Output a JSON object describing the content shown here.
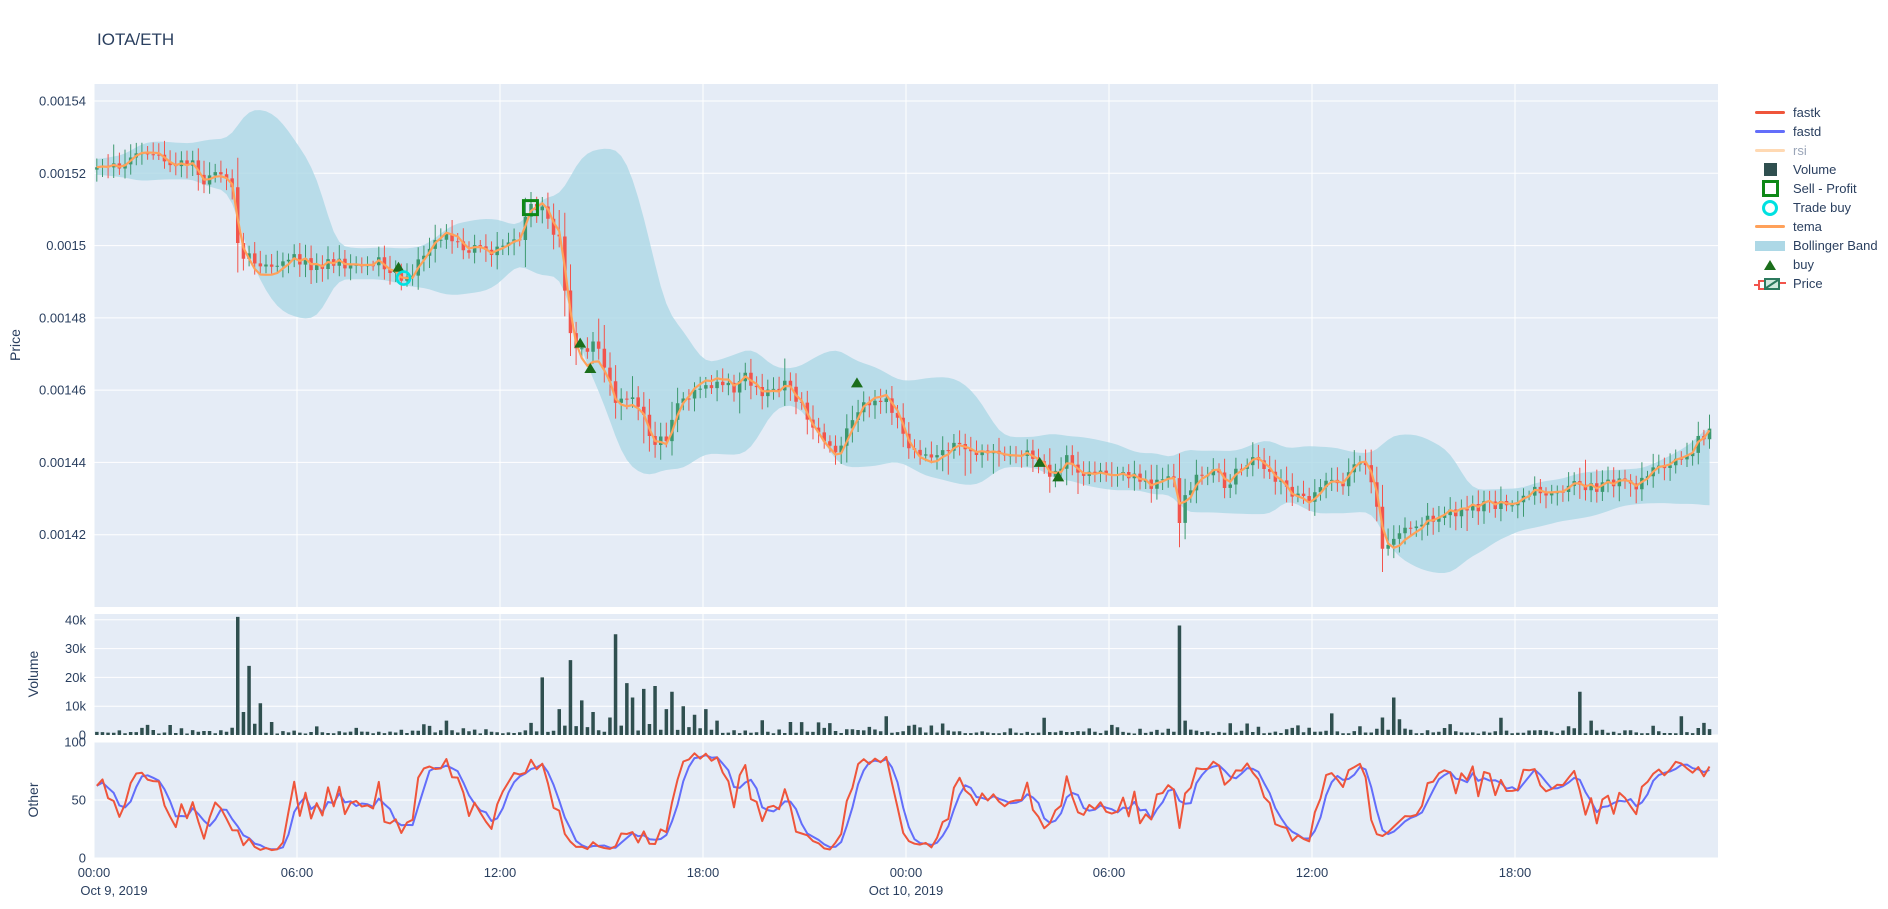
{
  "title": "IOTA/ETH",
  "colors": {
    "background": "#ffffff",
    "plot_bg": "#E5ECF6",
    "grid": "#ffffff",
    "text": "#2a3f5f",
    "muted_text": "#9aa5b8",
    "candle_up": "#3D9970",
    "candle_down": "#F2544C",
    "tema": "#FFA15A",
    "bollinger": "#ADD8E6",
    "volume": "#2F4F4F",
    "fastk": "#EF553B",
    "fastd": "#636EFA",
    "rsi": "#FFD9B3",
    "buy": "#1B6E1B",
    "sell_profit": "#0E8816",
    "trade_buy": "#00E1E1"
  },
  "legend": {
    "items": [
      {
        "label": "fastk",
        "swatch": "line",
        "color": "#EF553B",
        "hidden": false
      },
      {
        "label": "fastd",
        "swatch": "line",
        "color": "#636EFA",
        "hidden": false
      },
      {
        "label": "rsi",
        "swatch": "line",
        "color": "#FFD9B3",
        "hidden": true
      },
      {
        "label": "Volume",
        "swatch": "square",
        "color": "#2F4F4F",
        "hidden": false
      },
      {
        "label": "Sell - Profit",
        "swatch": "square-open",
        "color": "#0E8816",
        "hidden": false
      },
      {
        "label": "Trade buy",
        "swatch": "circle-open",
        "color": "#00E1E1",
        "hidden": false
      },
      {
        "label": "tema",
        "swatch": "line",
        "color": "#FFA15A",
        "hidden": false
      },
      {
        "label": "Bollinger Band",
        "swatch": "band",
        "color": "#ADD8E6",
        "hidden": false
      },
      {
        "label": "buy",
        "swatch": "triangle",
        "color": "#1B6E1B",
        "hidden": false
      },
      {
        "label": "Price",
        "swatch": "candle",
        "color": "#3D9970",
        "hidden": false
      }
    ]
  },
  "axes": {
    "price": {
      "title": "Price",
      "tick_labels": [
        "0.00154",
        "0.00152",
        "0.0015",
        "0.00148",
        "0.00146",
        "0.00144",
        "0.00142"
      ],
      "tick_values": [
        0.00154,
        0.00152,
        0.0015,
        0.00148,
        0.00146,
        0.00144,
        0.00142
      ]
    },
    "volume": {
      "title": "Volume",
      "tick_labels": [
        "40k",
        "30k",
        "20k",
        "10k",
        "0"
      ],
      "tick_values": [
        40000,
        30000,
        20000,
        10000,
        0
      ]
    },
    "other": {
      "title": "Other",
      "tick_labels": [
        "100",
        "50",
        "0"
      ],
      "tick_values": [
        100,
        50,
        0
      ]
    },
    "x": {
      "tick_hours": [
        0,
        6,
        12,
        18,
        24,
        30,
        36,
        42
      ],
      "tick_labels": [
        "00:00",
        "06:00",
        "12:00",
        "18:00",
        "00:00",
        "06:00",
        "12:00",
        "18:00"
      ],
      "date_labels": [
        {
          "hour": 0,
          "label": "Oct 9, 2019"
        },
        {
          "hour": 24,
          "label": "Oct 10, 2019"
        }
      ],
      "range_hours": [
        0,
        48
      ]
    }
  },
  "chart_data": [
    {
      "id": "price",
      "type": "candlestick",
      "ylabel": "Price",
      "ylim": [
        0.0014,
        0.0015447
      ],
      "grid": true,
      "legend_position": "right",
      "close_keypoints": [
        [
          0,
          0.001521
        ],
        [
          0.4,
          0.0015225
        ],
        [
          0.8,
          0.001523
        ],
        [
          1.2,
          0.001525
        ],
        [
          1.5,
          0.0015268
        ],
        [
          1.8,
          0.001524
        ],
        [
          2.1,
          0.0015228
        ],
        [
          2.5,
          0.0015235
        ],
        [
          2.9,
          0.0015225
        ],
        [
          3.2,
          0.0015165
        ],
        [
          3.5,
          0.0015195
        ],
        [
          3.8,
          0.0015205
        ],
        [
          4.0,
          0.001518
        ],
        [
          4.15,
          0.001512
        ],
        [
          4.3,
          0.0014975
        ],
        [
          4.6,
          0.001496
        ],
        [
          5.0,
          0.0014945
        ],
        [
          5.4,
          0.001495
        ],
        [
          5.8,
          0.0014965
        ],
        [
          6.2,
          0.0014955
        ],
        [
          6.6,
          0.0014935
        ],
        [
          7.0,
          0.001495
        ],
        [
          7.4,
          0.0014945
        ],
        [
          7.8,
          0.001494
        ],
        [
          8.2,
          0.001496
        ],
        [
          8.6,
          0.001495
        ],
        [
          9.0,
          0.001492
        ],
        [
          9.3,
          0.001491
        ],
        [
          9.7,
          0.001496
        ],
        [
          10.1,
          0.0015
        ],
        [
          10.4,
          0.001502
        ],
        [
          10.7,
          0.0015
        ],
        [
          11.0,
          0.001497
        ],
        [
          11.3,
          0.0015
        ],
        [
          11.7,
          0.001499
        ],
        [
          12.1,
          0.0014995
        ],
        [
          12.5,
          0.001501
        ],
        [
          12.8,
          0.001509
        ],
        [
          13.0,
          0.0015115
        ],
        [
          13.2,
          0.0015105
        ],
        [
          13.5,
          0.001506
        ],
        [
          13.8,
          0.0015
        ],
        [
          14.0,
          0.00148
        ],
        [
          14.2,
          0.001472
        ],
        [
          14.5,
          0.001469
        ],
        [
          14.8,
          0.001475
        ],
        [
          15.1,
          0.001466
        ],
        [
          15.4,
          0.001456
        ],
        [
          15.7,
          0.001459
        ],
        [
          16.0,
          0.001457
        ],
        [
          16.3,
          0.001452
        ],
        [
          16.6,
          0.001444
        ],
        [
          16.9,
          0.001447
        ],
        [
          17.3,
          0.001456
        ],
        [
          17.7,
          0.001459
        ],
        [
          18.1,
          0.001461
        ],
        [
          18.5,
          0.001463
        ],
        [
          18.9,
          0.001461
        ],
        [
          19.3,
          0.001464
        ],
        [
          19.7,
          0.00146
        ],
        [
          20.0,
          0.001458
        ],
        [
          20.4,
          0.001461
        ],
        [
          20.8,
          0.001457
        ],
        [
          21.2,
          0.00145
        ],
        [
          21.6,
          0.001446
        ],
        [
          22.0,
          0.001444
        ],
        [
          22.4,
          0.001452
        ],
        [
          22.7,
          0.001457
        ],
        [
          23.1,
          0.001457
        ],
        [
          23.5,
          0.001456
        ],
        [
          23.8,
          0.00145
        ],
        [
          24.0,
          0.001445
        ],
        [
          24.4,
          0.001441
        ],
        [
          24.8,
          0.001443
        ],
        [
          25.2,
          0.001445
        ],
        [
          25.6,
          0.001444
        ],
        [
          26.0,
          0.001441
        ],
        [
          26.4,
          0.001443
        ],
        [
          26.8,
          0.001443
        ],
        [
          27.2,
          0.001441
        ],
        [
          27.6,
          0.001443
        ],
        [
          28.0,
          0.001439
        ],
        [
          28.4,
          0.001436
        ],
        [
          28.8,
          0.001441
        ],
        [
          29.2,
          0.001438
        ],
        [
          29.6,
          0.001436
        ],
        [
          30.0,
          0.001436
        ],
        [
          30.4,
          0.001437
        ],
        [
          30.8,
          0.001436
        ],
        [
          31.2,
          0.001433
        ],
        [
          31.6,
          0.001437
        ],
        [
          31.9,
          0.001438
        ],
        [
          32.05,
          0.00142
        ],
        [
          32.3,
          0.001432
        ],
        [
          32.7,
          0.001436
        ],
        [
          33.1,
          0.001437
        ],
        [
          33.5,
          0.001434
        ],
        [
          33.9,
          0.001438
        ],
        [
          34.3,
          0.001441
        ],
        [
          34.7,
          0.001437
        ],
        [
          35.1,
          0.001434
        ],
        [
          35.5,
          0.001431
        ],
        [
          35.9,
          0.001428
        ],
        [
          36.3,
          0.001433
        ],
        [
          36.7,
          0.001434
        ],
        [
          37.1,
          0.001436
        ],
        [
          37.5,
          0.001441
        ],
        [
          37.7,
          0.001437
        ],
        [
          37.9,
          0.001427
        ],
        [
          38.1,
          0.0014155
        ],
        [
          38.4,
          0.001419
        ],
        [
          38.8,
          0.001421
        ],
        [
          39.2,
          0.001423
        ],
        [
          39.6,
          0.001425
        ],
        [
          40.0,
          0.001425
        ],
        [
          40.4,
          0.001427
        ],
        [
          40.8,
          0.001427
        ],
        [
          41.2,
          0.001428
        ],
        [
          41.6,
          0.001429
        ],
        [
          42.0,
          0.00143
        ],
        [
          42.4,
          0.001432
        ],
        [
          42.8,
          0.001433
        ],
        [
          43.2,
          0.001431
        ],
        [
          43.6,
          0.001433
        ],
        [
          44.0,
          0.001434
        ],
        [
          44.4,
          0.001433
        ],
        [
          44.8,
          0.001434
        ],
        [
          45.2,
          0.001436
        ],
        [
          45.6,
          0.001434
        ],
        [
          46.0,
          0.001437
        ],
        [
          46.4,
          0.00144
        ],
        [
          46.8,
          0.001442
        ],
        [
          47.2,
          0.001443
        ],
        [
          47.5,
          0.001447
        ],
        [
          47.9,
          0.0014515
        ]
      ],
      "indicators": {
        "tema_period": 7,
        "bollinger_period": 18,
        "bollinger_mult": 2,
        "rsi_hidden": true
      },
      "markers": {
        "buy": [
          [
            9.0,
            0.001494
          ],
          [
            14.37,
            0.001473
          ],
          [
            14.67,
            0.001466
          ],
          [
            22.55,
            0.001462
          ],
          [
            27.95,
            0.00144
          ],
          [
            28.5,
            0.001436
          ]
        ],
        "sell_profit": [
          [
            12.9,
            0.0015105
          ]
        ],
        "trade_buy": [
          [
            9.15,
            0.001491
          ]
        ]
      }
    },
    {
      "id": "volume",
      "type": "bar",
      "ylabel": "Volume",
      "ylim": [
        0,
        42000
      ],
      "spikes": [
        [
          1.5,
          3500
        ],
        [
          4.1,
          41000
        ],
        [
          4.45,
          24000
        ],
        [
          4.8,
          11000
        ],
        [
          5.1,
          4500
        ],
        [
          6.5,
          3000
        ],
        [
          10.3,
          5000
        ],
        [
          12.8,
          4200
        ],
        [
          13.2,
          20000
        ],
        [
          13.6,
          9000
        ],
        [
          13.95,
          26000
        ],
        [
          14.3,
          12000
        ],
        [
          14.6,
          8000
        ],
        [
          15.4,
          35000
        ],
        [
          15.65,
          18000
        ],
        [
          15.9,
          13000
        ],
        [
          16.1,
          16000
        ],
        [
          16.5,
          17000
        ],
        [
          16.75,
          9000
        ],
        [
          16.95,
          15000
        ],
        [
          17.3,
          10000
        ],
        [
          17.6,
          7000
        ],
        [
          18.0,
          9000
        ],
        [
          18.4,
          5000
        ],
        [
          20.5,
          4500
        ],
        [
          23.3,
          6500
        ],
        [
          25.0,
          4000
        ],
        [
          28.0,
          6000
        ],
        [
          30.0,
          3500
        ],
        [
          32.05,
          38000
        ],
        [
          32.2,
          5000
        ],
        [
          34.0,
          4000
        ],
        [
          36.5,
          7500
        ],
        [
          38.25,
          13000
        ],
        [
          38.5,
          5500
        ],
        [
          40.0,
          3800
        ],
        [
          41.5,
          6000
        ],
        [
          43.8,
          15000
        ],
        [
          44.1,
          5000
        ],
        [
          46.9,
          6500
        ],
        [
          47.5,
          4200
        ]
      ]
    },
    {
      "id": "other",
      "type": "line",
      "ylabel": "Other",
      "ylim": [
        0,
        100
      ],
      "series": [
        {
          "name": "fastk",
          "color": "#EF553B",
          "kind": "stochastic-fast-k",
          "period": 9
        },
        {
          "name": "fastd",
          "color": "#636EFA",
          "kind": "sma-of-fastk",
          "period": 3
        },
        {
          "name": "rsi",
          "color": "#FFD9B3",
          "kind": "rsi",
          "hidden": true
        }
      ]
    }
  ],
  "synthesis": {
    "seed": 42,
    "candle_minutes": 10,
    "note": "candles interpolated from close_keypoints read off the chart"
  }
}
